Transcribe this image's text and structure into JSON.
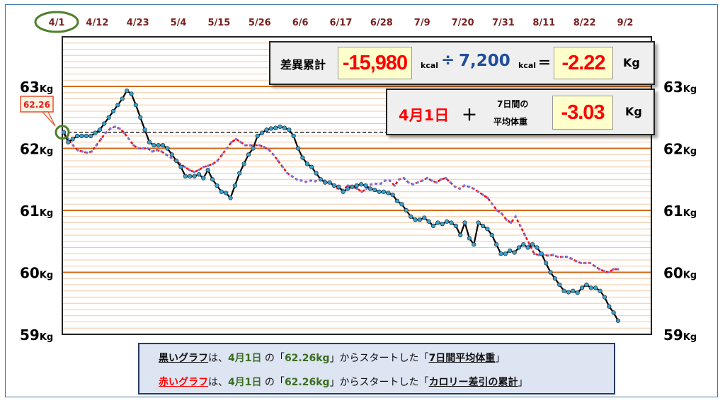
{
  "chart_data": {
    "type": "line",
    "x_ticks": [
      "4/1",
      "4/12",
      "4/23",
      "5/4",
      "5/15",
      "5/26",
      "6/6",
      "6/17",
      "6/28",
      "7/9",
      "7/20",
      "7/31",
      "8/11",
      "8/22",
      "9/2"
    ],
    "highlighted_tick": "4/1",
    "ylim": [
      59,
      63.8
    ],
    "y_ticks": [
      59,
      60,
      61,
      62,
      63
    ],
    "y_unit": "Kg",
    "start_value": 62.26,
    "start_label": "62.26",
    "grid": true,
    "series": [
      {
        "color": "#000000",
        "values": [
          62.26,
          62.1,
          62.15,
          62.2,
          62.2,
          62.2,
          62.2,
          62.25,
          62.3,
          62.4,
          62.5,
          62.6,
          62.7,
          62.8,
          62.93,
          62.88,
          62.7,
          62.5,
          62.3,
          62.1,
          62.05,
          62.05,
          62.05,
          62.0,
          61.9,
          61.8,
          61.7,
          61.55,
          61.55,
          61.55,
          61.58,
          61.52,
          61.65,
          61.5,
          61.4,
          61.3,
          61.28,
          61.2,
          61.4,
          61.6,
          61.75,
          61.9,
          62.0,
          62.2,
          62.25,
          62.3,
          62.32,
          62.33,
          62.35,
          62.33,
          62.3,
          62.2,
          62.0,
          61.85,
          61.75,
          61.7,
          61.6,
          61.5,
          61.45,
          61.45,
          61.4,
          61.38,
          61.3,
          61.35,
          61.38,
          61.4,
          61.42,
          61.4,
          61.35,
          61.33,
          61.3,
          61.3,
          61.28,
          61.25,
          61.15,
          61.1,
          61.0,
          60.9,
          60.85,
          60.85,
          60.88,
          60.82,
          60.75,
          60.8,
          60.78,
          60.82,
          60.8,
          60.75,
          60.6,
          60.8,
          60.55,
          60.45,
          60.8,
          60.75,
          60.7,
          60.6,
          60.45,
          60.3,
          60.3,
          60.35,
          60.32,
          60.4,
          60.45,
          60.4,
          60.45,
          60.4,
          60.3,
          60.15,
          60.0,
          59.9,
          59.8,
          59.7,
          59.68,
          59.7,
          59.67,
          59.75,
          59.8,
          59.75,
          59.75,
          59.7,
          59.6,
          59.45,
          59.35,
          59.22
        ]
      },
      {
        "color": "#ff0000",
        "values": [
          62.26,
          62.15,
          62.05,
          61.97,
          61.95,
          61.93,
          61.95,
          62.05,
          62.15,
          62.25,
          62.32,
          62.35,
          62.32,
          62.25,
          62.15,
          62.05,
          62.0,
          62.0,
          62.0,
          61.95,
          61.97,
          61.95,
          61.9,
          61.85,
          61.8,
          61.75,
          61.7,
          61.65,
          61.62,
          61.65,
          61.7,
          61.72,
          61.75,
          61.8,
          61.9,
          62.0,
          62.1,
          62.15,
          62.1,
          62.05,
          62.05,
          62.05,
          62.05,
          62.02,
          61.98,
          61.9,
          61.8,
          61.7,
          61.6,
          61.55,
          61.5,
          61.48,
          61.46,
          61.48,
          61.47,
          61.5,
          61.48,
          61.45,
          61.38,
          61.35,
          61.33,
          61.4,
          61.38,
          61.35,
          61.3,
          61.35,
          61.42,
          61.43,
          61.43,
          61.48,
          61.48,
          61.4,
          61.5,
          61.52,
          61.45,
          61.42,
          61.45,
          61.48,
          61.52,
          61.48,
          61.45,
          61.5,
          61.52,
          61.45,
          61.38,
          61.35,
          61.4,
          61.38,
          61.35,
          61.3,
          61.25,
          61.2,
          61.1,
          61.0,
          60.95,
          60.85,
          60.8,
          60.9,
          60.75,
          60.6,
          60.45,
          60.3,
          60.28,
          60.28,
          60.27,
          60.28,
          60.25,
          60.25,
          60.25,
          60.22,
          60.18,
          60.15,
          60.15,
          60.15,
          60.1,
          60.05,
          60.02,
          60.0,
          60.05,
          60.05
        ]
      }
    ]
  },
  "summary_box": {
    "label": "差異累計",
    "cumulative": "-15,980",
    "unit1": "kcal",
    "divide": "÷",
    "divisor": "7,200",
    "unit2": "kcal",
    "equals": "＝",
    "result": "-2.22",
    "result_unit": "Kg"
  },
  "avg_box": {
    "date": "4月1日",
    "plus": "＋",
    "line1": "7日間の",
    "line2": "平均体重",
    "value": "-3.03",
    "unit": "Kg"
  },
  "legend": {
    "row1": {
      "name": "黒いグラフ",
      "t1": "は、",
      "date": "4月1日",
      "t2": " の「",
      "kg": "62.26kg",
      "t3": "」からスタートした「",
      "target": "7日間平均体重",
      "t4": "」"
    },
    "row2": {
      "name": "赤いグラフ",
      "t1": "は、",
      "date": "4月1日",
      "t2": " の「",
      "kg": "62.26kg",
      "t3": "」からスタートした「",
      "target": "カロリー差引の累計",
      "t4": "」"
    }
  },
  "colors": {
    "black_series": "#000000",
    "black_marker": "#3aa0c8",
    "red_series": "#ff0000",
    "red_marker": "#7a7adc",
    "major_grid": "#d06a1a",
    "minor_grid": "#f3c7a2",
    "date_text": "#7a1f1f",
    "highlight_circle": "#4f7f2a",
    "kcal_blue": "#1f4e9a"
  }
}
